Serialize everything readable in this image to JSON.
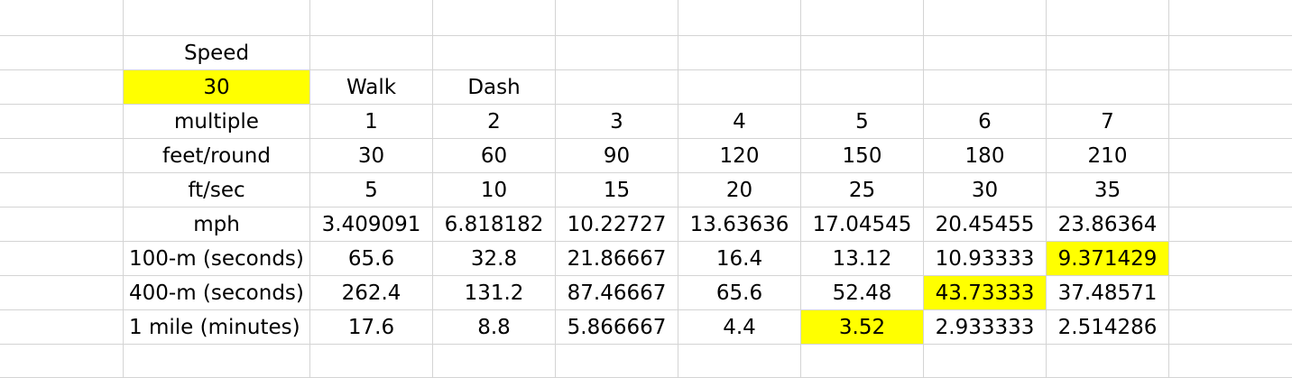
{
  "sheet": {
    "highlight_color": "#ffff00",
    "rows": [
      {
        "cells": [
          "",
          "",
          "",
          "",
          "",
          "",
          "",
          "",
          "",
          "",
          ""
        ]
      },
      {
        "cells": [
          "",
          "Speed",
          "",
          "",
          "",
          "",
          "",
          "",
          "",
          "",
          ""
        ]
      },
      {
        "cells": [
          "",
          "30",
          "Walk",
          "Dash",
          "",
          "",
          "",
          "",
          "",
          "",
          ""
        ],
        "highlight": [
          1
        ]
      },
      {
        "cells": [
          "",
          "multiple",
          "1",
          "2",
          "3",
          "4",
          "5",
          "6",
          "7",
          "",
          ""
        ]
      },
      {
        "cells": [
          "",
          "feet/round",
          "30",
          "60",
          "90",
          "120",
          "150",
          "180",
          "210",
          "",
          ""
        ]
      },
      {
        "cells": [
          "",
          "ft/sec",
          "5",
          "10",
          "15",
          "20",
          "25",
          "30",
          "35",
          "",
          ""
        ]
      },
      {
        "cells": [
          "",
          "mph",
          "3.409091",
          "6.818182",
          "10.22727",
          "13.63636",
          "17.04545",
          "20.45455",
          "23.86364",
          "",
          ""
        ]
      },
      {
        "cells": [
          "",
          "100-m (seconds)",
          "65.6",
          "32.8",
          "21.86667",
          "16.4",
          "13.12",
          "10.93333",
          "9.371429",
          "",
          ""
        ],
        "highlight": [
          8
        ]
      },
      {
        "cells": [
          "",
          "400-m (seconds)",
          "262.4",
          "131.2",
          "87.46667",
          "65.6",
          "52.48",
          "43.73333",
          "37.48571",
          "",
          ""
        ],
        "highlight": [
          7
        ]
      },
      {
        "cells": [
          "",
          "1 mile (minutes)",
          "17.6",
          "8.8",
          "5.866667",
          "4.4",
          "3.52",
          "2.933333",
          "2.514286",
          "",
          ""
        ],
        "highlight": [
          6
        ]
      },
      {
        "cells": [
          "",
          "",
          "",
          "",
          "",
          "",
          "",
          "",
          "",
          "",
          ""
        ]
      }
    ]
  }
}
